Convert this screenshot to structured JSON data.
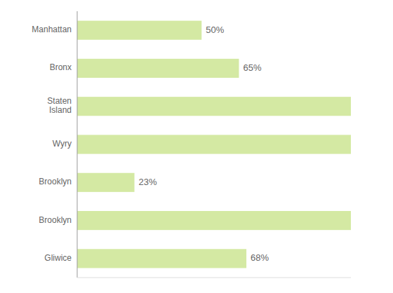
{
  "chart_data": {
    "type": "bar",
    "orientation": "horizontal",
    "categories": [
      "Manhattan",
      "Bronx",
      "Staten\nIsland",
      "Wyry",
      "Brooklyn",
      "Brooklyn",
      "Gliwice"
    ],
    "values": [
      50,
      65,
      110,
      110,
      23,
      110,
      68
    ],
    "value_labels": [
      "50%",
      "65%",
      null,
      null,
      "23%",
      null,
      "68%"
    ],
    "data_labels": true,
    "color": "#d4e9a3",
    "xlim": [
      0,
      110
    ],
    "grid": false,
    "tick_labels": "y"
  }
}
